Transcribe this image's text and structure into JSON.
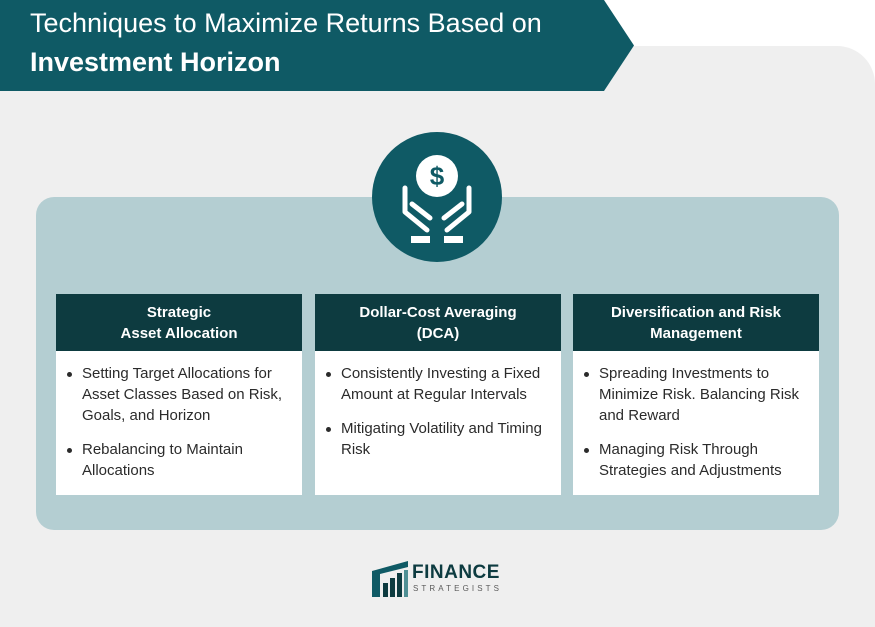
{
  "header": {
    "title_line1": "Techniques to Maximize Returns Based on",
    "title_line2": "Investment Horizon"
  },
  "icon": "money-in-hands-icon",
  "columns": [
    {
      "title_line1": "Strategic",
      "title_line2": "Asset Allocation",
      "items": [
        "Setting Target Allocations for Asset Classes Based on Risk, Goals, and Horizon",
        "Rebalancing to Maintain Allocations"
      ]
    },
    {
      "title_line1": "Dollar-Cost Averaging",
      "title_line2": "(DCA)",
      "items": [
        "Consistently Investing a Fixed Amount at Regular Intervals",
        "Mitigating Volatility and Timing Risk"
      ]
    },
    {
      "title_line1": "Diversification and Risk",
      "title_line2": "Management",
      "items": [
        "Spreading Investments to Minimize Risk. Balancing Risk and Reward",
        "Managing Risk Through Strategies and Adjustments"
      ]
    }
  ],
  "logo": {
    "name": "FINANCE",
    "subtitle": "STRATEGISTS"
  },
  "colors": {
    "banner": "#0f5a65",
    "dark_teal": "#0d3b40",
    "panel": "#b4ced2",
    "background": "#efefef"
  }
}
